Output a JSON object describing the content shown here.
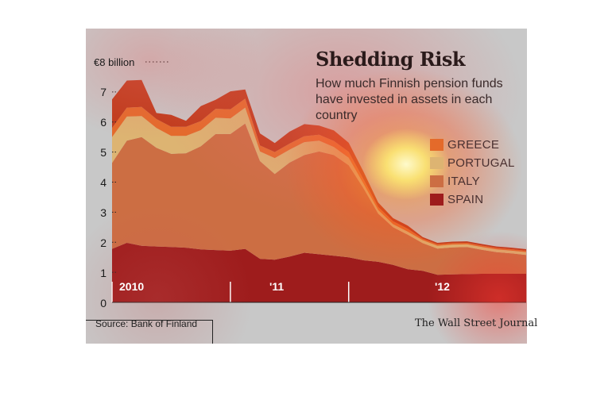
{
  "chart_data": {
    "type": "area",
    "stacked": true,
    "title": "Shedding Risk",
    "subtitle": "How much Finnish pension funds have invested in assets in each country",
    "ylabel": "€8 billion",
    "ylim": [
      0,
      8
    ],
    "yticks": [
      "0",
      "1",
      "2",
      "3",
      "4",
      "5",
      "6",
      "7"
    ],
    "xtick_labels": [
      "2010",
      "'11",
      "'12"
    ],
    "grid": false,
    "legend_position": "right",
    "x": [
      0,
      1,
      2,
      3,
      4,
      5,
      6,
      7,
      8,
      9,
      10,
      11,
      12,
      13,
      14,
      15,
      16,
      17,
      18,
      19,
      20,
      21,
      22,
      23,
      24,
      25,
      26,
      27,
      28
    ],
    "series": [
      {
        "name": "SPAIN",
        "color": "#9e1c1c",
        "values": [
          1.78,
          1.98,
          1.88,
          1.86,
          1.84,
          1.82,
          1.76,
          1.74,
          1.72,
          1.78,
          1.45,
          1.42,
          1.52,
          1.65,
          1.6,
          1.55,
          1.5,
          1.4,
          1.35,
          1.25,
          1.1,
          1.05,
          0.92,
          0.93,
          0.94,
          0.95,
          0.95,
          0.95,
          0.95
        ]
      },
      {
        "name": "ITALY",
        "color": "#cc6e43",
        "values": [
          2.86,
          3.4,
          3.62,
          3.28,
          3.1,
          3.14,
          3.43,
          3.86,
          3.88,
          4.17,
          3.25,
          2.85,
          3.13,
          3.25,
          3.42,
          3.35,
          3.06,
          2.4,
          1.6,
          1.25,
          1.15,
          0.92,
          0.87,
          0.9,
          0.9,
          0.8,
          0.72,
          0.68,
          0.63
        ]
      },
      {
        "name": "PORTUGAL",
        "color": "#ddb472",
        "values": [
          0.86,
          0.8,
          0.7,
          0.66,
          0.6,
          0.58,
          0.54,
          0.54,
          0.52,
          0.53,
          0.32,
          0.53,
          0.43,
          0.43,
          0.36,
          0.27,
          0.25,
          0.15,
          0.12,
          0.1,
          0.1,
          0.1,
          0.09,
          0.09,
          0.09,
          0.09,
          0.09,
          0.09,
          0.09
        ]
      },
      {
        "name": "GREECE",
        "color": "#e46a2a",
        "values": [
          0.3,
          0.3,
          0.3,
          0.3,
          0.3,
          0.3,
          0.3,
          0.3,
          0.3,
          0.3,
          0.2,
          0.2,
          0.2,
          0.2,
          0.2,
          0.2,
          0.2,
          0.15,
          0.1,
          0.1,
          0.1,
          0.05,
          0.05,
          0.05,
          0.05,
          0.05,
          0.05,
          0.05,
          0.05
        ]
      },
      {
        "name": "",
        "color": "#bf3a1a",
        "values": [
          0.95,
          0.9,
          0.9,
          0.2,
          0.4,
          0.2,
          0.5,
          0.3,
          0.6,
          0.3,
          0.4,
          0.3,
          0.4,
          0.4,
          0.3,
          0.35,
          0.3,
          0.25,
          0.15,
          0.1,
          0.1,
          0.05,
          0.05,
          0.05,
          0.05,
          0.05,
          0.05,
          0.05,
          0.05
        ]
      }
    ]
  },
  "legend": [
    {
      "label": "GREECE",
      "color": "#e46a2a"
    },
    {
      "label": "PORTUGAL",
      "color": "#ddb472"
    },
    {
      "label": "ITALY",
      "color": "#cc6e43"
    },
    {
      "label": "SPAIN",
      "color": "#9e1c1c"
    }
  ],
  "source": "Source: Bank of Finland",
  "credit": "The Wall Street Journal"
}
